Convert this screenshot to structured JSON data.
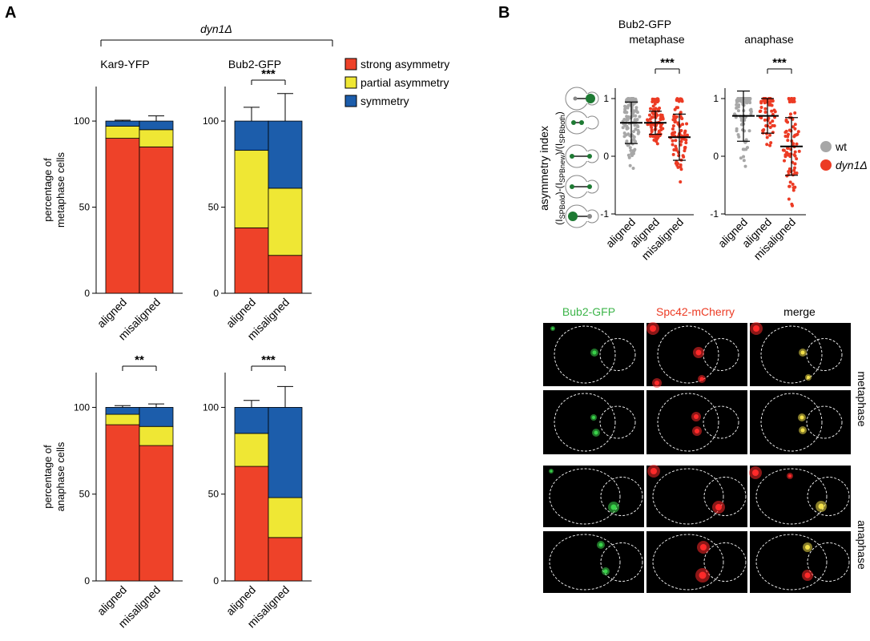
{
  "panel_a": {
    "letter": "A",
    "group_label": "dyn1Δ",
    "legend": [
      {
        "label": "strong asymmetry",
        "color": "#ee4229"
      },
      {
        "label": "partial asymmetry",
        "color": "#efe734"
      },
      {
        "label": "symmetry",
        "color": "#1c5dab"
      }
    ]
  },
  "panel_b": {
    "letter": "B",
    "title": "Bub2-GFP",
    "legend": [
      {
        "label": "wt",
        "color": "#a7a7a7"
      },
      {
        "label": "dyn1Δ",
        "color": "#ec3b24"
      }
    ],
    "ylabel_main": "asymmetry index",
    "ylabel_formula": "(I SPBold)-(I SPBnew)/(I SPBboth)",
    "ylabel_parts": [
      "(I",
      "SPBold",
      ")-(I",
      "SPBnew",
      ")/(I",
      "SPBboth",
      ")"
    ]
  },
  "micrographs": {
    "col_labels": [
      "Bub2-GFP",
      "Spc42-mCherry",
      "merge"
    ],
    "col_colors": [
      "#3db54a",
      "#ec3b24",
      "#000000"
    ],
    "row_labels": [
      "metaphase",
      "anaphase"
    ]
  },
  "chart_data": [
    {
      "type": "bar",
      "stacked": true,
      "panel": "A",
      "title": "Kar9-YFP",
      "ylabel": "percentage of metaphase cells",
      "categories": [
        "aligned",
        "misaligned"
      ],
      "ylim": [
        0,
        100
      ],
      "yticks": [
        0,
        50,
        100
      ],
      "series": [
        {
          "name": "strong asymmetry",
          "values": [
            90,
            85
          ],
          "err": [
            2.5,
            0
          ]
        },
        {
          "name": "partial asymmetry",
          "values": [
            7,
            10
          ],
          "err": [
            1.5,
            4
          ]
        },
        {
          "name": "symmetry",
          "values": [
            3,
            5
          ],
          "err": [
            0.5,
            3
          ]
        }
      ],
      "significance": null
    },
    {
      "type": "bar",
      "stacked": true,
      "panel": "A",
      "title": "Bub2-GFP",
      "ylabel": "",
      "categories": [
        "aligned",
        "misaligned"
      ],
      "ylim": [
        0,
        100
      ],
      "yticks": [
        0,
        50,
        100
      ],
      "series": [
        {
          "name": "strong asymmetry",
          "values": [
            38,
            22
          ],
          "err": [
            1.5,
            8.5
          ]
        },
        {
          "name": "partial asymmetry",
          "values": [
            45,
            39
          ],
          "err": [
            8.5,
            9.5
          ]
        },
        {
          "name": "symmetry",
          "values": [
            17,
            39
          ],
          "err": [
            8,
            16
          ]
        }
      ],
      "significance": "***"
    },
    {
      "type": "bar",
      "stacked": true,
      "panel": "A",
      "title": "",
      "ylabel": "percentage of anaphase cells",
      "categories": [
        "aligned",
        "misaligned"
      ],
      "ylim": [
        0,
        100
      ],
      "yticks": [
        0,
        50,
        100
      ],
      "series": [
        {
          "name": "strong asymmetry",
          "values": [
            90,
            78
          ],
          "err": [
            2,
            1
          ]
        },
        {
          "name": "partial asymmetry",
          "values": [
            6,
            11
          ],
          "err": [
            2,
            2
          ]
        },
        {
          "name": "symmetry",
          "values": [
            4,
            11
          ],
          "err": [
            1,
            2
          ]
        }
      ],
      "significance": "**"
    },
    {
      "type": "bar",
      "stacked": true,
      "panel": "A",
      "title": "",
      "ylabel": "",
      "categories": [
        "aligned",
        "misaligned"
      ],
      "ylim": [
        0,
        100
      ],
      "yticks": [
        0,
        50,
        100
      ],
      "series": [
        {
          "name": "strong asymmetry",
          "values": [
            66,
            25
          ],
          "err": [
            0,
            8
          ]
        },
        {
          "name": "partial asymmetry",
          "values": [
            19,
            23
          ],
          "err": [
            0,
            4
          ]
        },
        {
          "name": "symmetry",
          "values": [
            15,
            52
          ],
          "err": [
            4,
            12
          ]
        }
      ],
      "significance": "***"
    },
    {
      "type": "scatter",
      "panel": "B",
      "title": "metaphase",
      "categories": [
        "aligned",
        "aligned",
        "misaligned"
      ],
      "category_series": [
        "wt",
        "dyn1Δ",
        "dyn1Δ"
      ],
      "ylim": [
        -1,
        1
      ],
      "yticks": [
        -1,
        0,
        1
      ],
      "groups": [
        {
          "series": "wt",
          "mean": 0.58,
          "sd": 0.36,
          "n": 140,
          "min": -0.5,
          "max": 1.0
        },
        {
          "series": "dyn1Δ",
          "mean": 0.58,
          "sd": 0.2,
          "n": 100,
          "min": -0.15,
          "max": 1.0
        },
        {
          "series": "dyn1Δ",
          "mean": 0.33,
          "sd": 0.4,
          "n": 90,
          "min": -0.78,
          "max": 1.0
        }
      ],
      "significance": "***"
    },
    {
      "type": "scatter",
      "panel": "B",
      "title": "anaphase",
      "categories": [
        "aligned",
        "aligned",
        "misaligned"
      ],
      "category_series": [
        "wt",
        "dyn1Δ",
        "dyn1Δ"
      ],
      "ylim": [
        -1,
        1
      ],
      "yticks": [
        -1,
        0,
        1
      ],
      "groups": [
        {
          "series": "wt",
          "mean": 0.7,
          "sd": 0.44,
          "n": 90,
          "min": -1.0,
          "max": 1.0
        },
        {
          "series": "dyn1Δ",
          "mean": 0.7,
          "sd": 0.3,
          "n": 65,
          "min": -0.4,
          "max": 1.0
        },
        {
          "series": "dyn1Δ",
          "mean": 0.17,
          "sd": 0.5,
          "n": 90,
          "min": -1.0,
          "max": 1.0
        }
      ],
      "significance": "***"
    }
  ]
}
